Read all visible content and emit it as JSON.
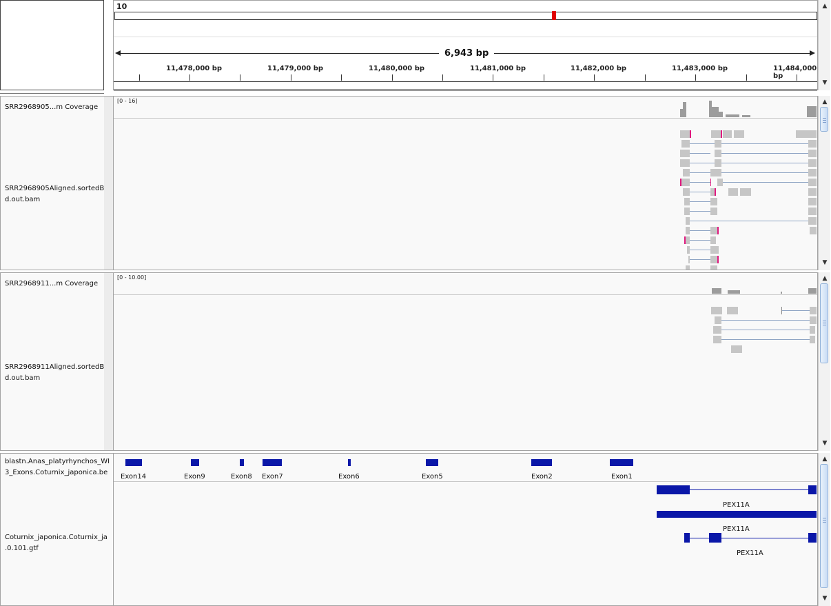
{
  "header": {
    "chromosome_label": "10",
    "span_label": "6,943 bp",
    "ticks": [
      "11,478,000 bp",
      "11,479,000 bp",
      "11,480,000 bp",
      "11,481,000 bp",
      "11,482,000 bp",
      "11,483,000 bp",
      "11,484,000 bp"
    ]
  },
  "tracks": {
    "t1": {
      "coverage_name": "SRR2968905...m Coverage",
      "coverage_range": "[0 - 16]",
      "alignment_name": "SRR2968905Aligned.sortedBy\nd.out.bam"
    },
    "t2": {
      "coverage_name": "SRR2968911...m Coverage",
      "coverage_range": "[0 - 10.00]",
      "alignment_name": "SRR2968911Aligned.sortedBy\nd.out.bam"
    },
    "features": {
      "blast_name": "blastn.Anas_platyrhynchos_WI\n3_Exons.Coturnix_japonica.be",
      "exons": [
        "Exon14",
        "Exon9",
        "Exon8",
        "Exon7",
        "Exon6",
        "Exon5",
        "Exon2",
        "Exon1"
      ],
      "gtf_name": "Coturnix_japonica.Coturnix_ja\n.0.101.gtf",
      "genes": [
        "PEX11A",
        "PEX11A",
        "PEX11A"
      ]
    }
  },
  "colors": {
    "feature": "#0a17a8",
    "read": "#c6c6c6",
    "mismatch": "#e0197e",
    "locator": "#e00000"
  },
  "icons": [
    "chevron-up-icon",
    "chevron-down-icon"
  ]
}
